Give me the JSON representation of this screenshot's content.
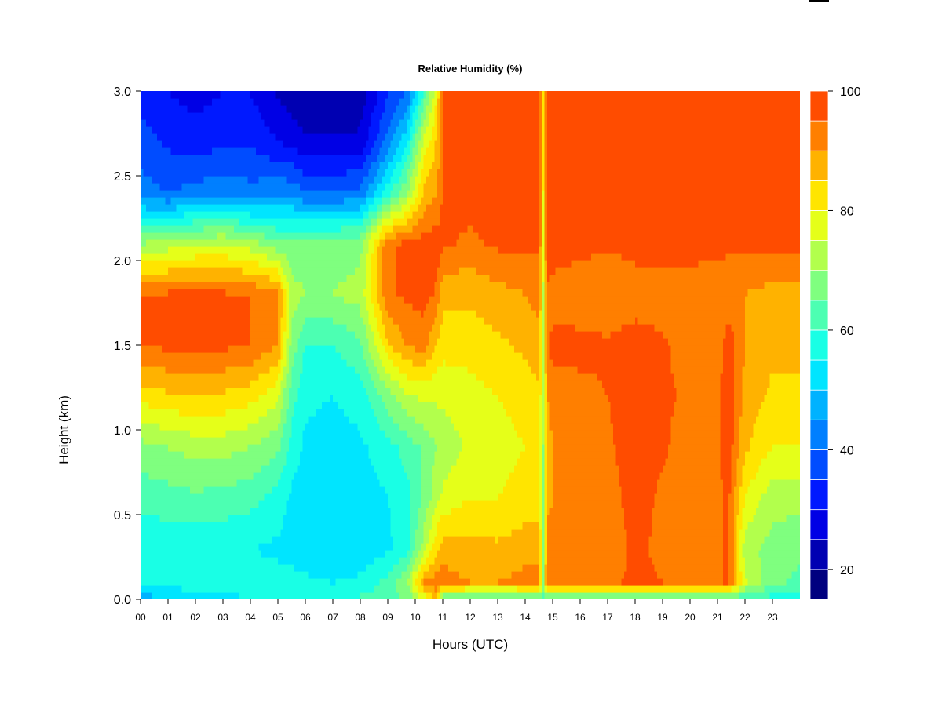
{
  "chart_data": {
    "type": "heatmap",
    "title": "Relative Humidity (%)",
    "xlabel": "Hours (UTC)",
    "ylabel": "Height (km)",
    "xlim": [
      0,
      24
    ],
    "ylim": [
      0.0,
      3.0
    ],
    "x_ticks": [
      "00",
      "01",
      "02",
      "03",
      "04",
      "05",
      "06",
      "07",
      "08",
      "09",
      "10",
      "11",
      "12",
      "13",
      "14",
      "15",
      "16",
      "17",
      "18",
      "19",
      "20",
      "21",
      "22",
      "23"
    ],
    "y_ticks": [
      "0.0",
      "0.5",
      "1.0",
      "1.5",
      "2.0",
      "2.5",
      "3.0"
    ],
    "colorbar": {
      "range": [
        15,
        100
      ],
      "ticks": [
        "20",
        "40",
        "60",
        "80",
        "100"
      ],
      "levels": [
        15,
        20,
        25,
        30,
        35,
        40,
        45,
        50,
        55,
        60,
        65,
        70,
        75,
        80,
        85,
        90,
        95,
        100
      ],
      "colors": [
        "#00007f",
        "#0000b2",
        "#0000e5",
        "#0019ff",
        "#004cff",
        "#007fff",
        "#00b2ff",
        "#00e5ff",
        "#19ffe5",
        "#4cffb2",
        "#7fff7f",
        "#b2ff4c",
        "#e5ff19",
        "#ffe500",
        "#ffb200",
        "#ff7f00",
        "#ff4c00",
        "#ff1900",
        "#e50000",
        "#b20000",
        "#7f0000"
      ]
    },
    "heights_km": [
      0.0,
      0.1,
      0.3,
      0.6,
      0.9,
      1.2,
      1.5,
      1.8,
      2.1,
      2.4,
      2.7,
      3.0
    ],
    "times_h": [
      0,
      1,
      2,
      3,
      4,
      5,
      5.5,
      6,
      7,
      8,
      9,
      9.7,
      10.3,
      10.8,
      11,
      12,
      13,
      14,
      14.5,
      14.65,
      14.8,
      15,
      16,
      17,
      18,
      19,
      20,
      21,
      21.4,
      22,
      23,
      24
    ],
    "rh_percent": [
      [
        47,
        58,
        56,
        62,
        68,
        82,
        95,
        95,
        70,
        42,
        38,
        32
      ],
      [
        49,
        58,
        56,
        63,
        70,
        84,
        96,
        96,
        72,
        40,
        34,
        30
      ],
      [
        51,
        58,
        56,
        64,
        72,
        85,
        97,
        97,
        74,
        42,
        32,
        28
      ],
      [
        53,
        58,
        56,
        63,
        72,
        84,
        96,
        96,
        75,
        44,
        34,
        30
      ],
      [
        55,
        58,
        55,
        62,
        70,
        82,
        95,
        95,
        72,
        42,
        34,
        30
      ],
      [
        57,
        57,
        54,
        58,
        66,
        76,
        90,
        92,
        66,
        44,
        30,
        24
      ],
      [
        58,
        57,
        53,
        54,
        58,
        62,
        68,
        72,
        66,
        44,
        28,
        22
      ],
      [
        59,
        56,
        52,
        52,
        54,
        56,
        60,
        70,
        68,
        40,
        26,
        20
      ],
      [
        60,
        55,
        51,
        51,
        53,
        55,
        60,
        70,
        68,
        40,
        26,
        20
      ],
      [
        61,
        56,
        52,
        52,
        54,
        57,
        64,
        72,
        68,
        42,
        26,
        22
      ],
      [
        62,
        62,
        54,
        55,
        58,
        68,
        84,
        94,
        94,
        58,
        42,
        34
      ],
      [
        66,
        70,
        58,
        58,
        62,
        74,
        90,
        96,
        96,
        70,
        54,
        40
      ],
      [
        76,
        90,
        72,
        66,
        66,
        76,
        92,
        97,
        97,
        86,
        76,
        60
      ],
      [
        88,
        94,
        84,
        74,
        70,
        76,
        84,
        94,
        98,
        90,
        86,
        80
      ],
      [
        64,
        92,
        88,
        76,
        72,
        76,
        82,
        86,
        96,
        96,
        96,
        98
      ],
      [
        62,
        90,
        87,
        80,
        76,
        78,
        82,
        86,
        94,
        97,
        98,
        99
      ],
      [
        61,
        90,
        86,
        80,
        78,
        80,
        84,
        88,
        96,
        98,
        99,
        100
      ],
      [
        61,
        92,
        88,
        82,
        80,
        82,
        86,
        90,
        96,
        98,
        99,
        100
      ],
      [
        60,
        92,
        88,
        82,
        80,
        84,
        88,
        92,
        96,
        98,
        99,
        100
      ],
      [
        62,
        70,
        68,
        68,
        70,
        72,
        72,
        74,
        78,
        80,
        82,
        84
      ],
      [
        62,
        94,
        92,
        88,
        86,
        90,
        94,
        94,
        98,
        99,
        100,
        100
      ],
      [
        60,
        95,
        93,
        90,
        90,
        92,
        97,
        92,
        99,
        100,
        100,
        100
      ],
      [
        58,
        94,
        92,
        92,
        92,
        93,
        97,
        91,
        97,
        100,
        100,
        100
      ],
      [
        59,
        94,
        92,
        93,
        94,
        95,
        96,
        90,
        96,
        100,
        100,
        100
      ],
      [
        59,
        96,
        96,
        97,
        98,
        98,
        98,
        92,
        97,
        100,
        100,
        100
      ],
      [
        61,
        95,
        94,
        94,
        96,
        96,
        96,
        92,
        98,
        100,
        100,
        100
      ],
      [
        60,
        93,
        92,
        92,
        92,
        94,
        92,
        90,
        99,
        100,
        100,
        100
      ],
      [
        60,
        94,
        94,
        94,
        94,
        94,
        92,
        90,
        97,
        100,
        100,
        100
      ],
      [
        60,
        96,
        96,
        96,
        98,
        98,
        98,
        92,
        96,
        100,
        100,
        100
      ],
      [
        60,
        76,
        72,
        80,
        86,
        88,
        90,
        90,
        96,
        100,
        100,
        100
      ],
      [
        58,
        66,
        68,
        72,
        80,
        84,
        86,
        88,
        96,
        100,
        100,
        99
      ],
      [
        56,
        64,
        66,
        72,
        80,
        84,
        86,
        88,
        96,
        100,
        100,
        98
      ]
    ]
  }
}
